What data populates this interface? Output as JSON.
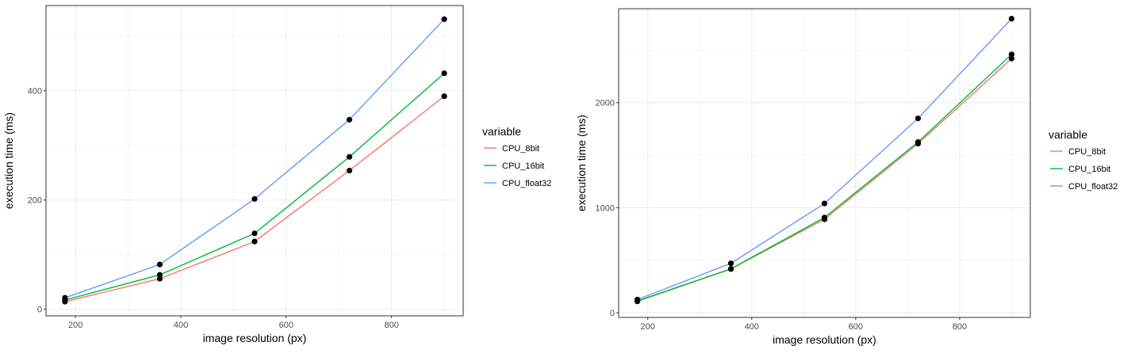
{
  "chart_data": [
    {
      "type": "line",
      "title": "",
      "xlabel": "image resolution (px)",
      "ylabel": "execution time (ms)",
      "xlim": [
        144,
        936
      ],
      "ylim": [
        -12,
        556
      ],
      "x_ticks": [
        200,
        400,
        600,
        800
      ],
      "y_ticks": [
        0,
        200,
        400
      ],
      "grid": true,
      "legend": {
        "title": "variable",
        "position": "right"
      },
      "x": [
        180,
        360,
        540,
        720,
        900
      ],
      "series": [
        {
          "name": "CPU_8bit",
          "color": "#F8766D",
          "values": [
            14,
            56,
            124,
            254,
            390
          ]
        },
        {
          "name": "CPU_16bit",
          "color": "#00BA38",
          "values": [
            17,
            63,
            139,
            279,
            432
          ]
        },
        {
          "name": "CPU_float32",
          "color": "#619CFF",
          "values": [
            21,
            82,
            202,
            347,
            531
          ]
        }
      ]
    },
    {
      "type": "line",
      "title": "",
      "xlabel": "image resolution (px)",
      "ylabel": "execution time (ms)",
      "xlim": [
        144,
        936
      ],
      "ylim": [
        -45,
        2895
      ],
      "x_ticks": [
        200,
        400,
        600,
        800
      ],
      "y_ticks": [
        0,
        1000,
        2000
      ],
      "grid": true,
      "legend": {
        "title": "variable",
        "position": "right"
      },
      "x": [
        180,
        360,
        540,
        720,
        900
      ],
      "series": [
        {
          "name": "CPU_8bit",
          "color": "#F8766D",
          "values": [
            108,
            416,
            890,
            1610,
            2420
          ]
        },
        {
          "name": "CPU_16bit",
          "color": "#00BA38",
          "values": [
            112,
            418,
            906,
            1625,
            2460
          ]
        },
        {
          "name": "CPU_float32",
          "color": "#619CFF",
          "values": [
            125,
            470,
            1040,
            1850,
            2800
          ]
        }
      ]
    }
  ]
}
